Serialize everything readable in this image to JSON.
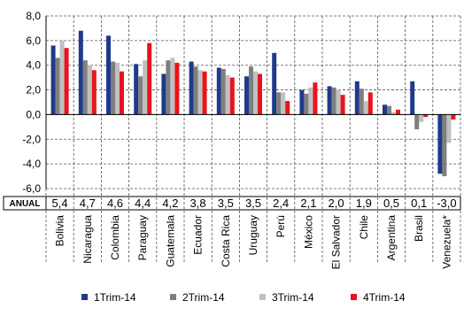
{
  "chart_data": {
    "type": "bar",
    "categories": [
      "Bolivia",
      "Nicaragua",
      "Colombia",
      "Paraguay",
      "Guatemala",
      "Ecuador",
      "Costa Rica",
      "Uruguay",
      "Perú",
      "México",
      "El Salvador",
      "Chile",
      "Argentina",
      "Brasil",
      "Venezuela*"
    ],
    "series": [
      {
        "name": "1Trim-14",
        "color": "#1f3a8a",
        "values": [
          5.6,
          6.8,
          6.4,
          4.1,
          3.3,
          4.3,
          3.8,
          3.1,
          5.0,
          2.0,
          2.3,
          2.7,
          0.8,
          2.7,
          -4.8
        ]
      },
      {
        "name": "2Trim-14",
        "color": "#7f7f7f",
        "values": [
          4.6,
          4.4,
          4.3,
          3.1,
          4.4,
          3.9,
          3.7,
          3.9,
          1.8,
          1.7,
          2.2,
          2.1,
          0.7,
          -1.2,
          -5.0
        ]
      },
      {
        "name": "3Trim-14",
        "color": "#c0c0c0",
        "values": [
          6.0,
          4.0,
          4.2,
          4.4,
          4.6,
          3.6,
          3.2,
          3.5,
          1.8,
          2.2,
          2.0,
          1.1,
          0.2,
          -0.6,
          -2.3
        ]
      },
      {
        "name": "4Trim-14",
        "color": "#e8141d",
        "values": [
          5.4,
          3.6,
          3.5,
          5.8,
          4.2,
          3.5,
          3.0,
          3.3,
          1.1,
          2.6,
          1.6,
          1.8,
          0.4,
          -0.2,
          -0.4
        ]
      }
    ],
    "ylim": [
      -6.0,
      8.0
    ],
    "yticks": [
      "8,0",
      "6,0",
      "4,0",
      "2,0",
      "0,0",
      "-2,0",
      "-4,0",
      "-6,0"
    ],
    "grid": true,
    "legend_position": "bottom",
    "annual": {
      "label": "ANUAL",
      "values": [
        "5,4",
        "4,7",
        "4,6",
        "4,4",
        "4,2",
        "3,8",
        "3,5",
        "3,5",
        "2,4",
        "2,1",
        "2,0",
        "1,9",
        "0,5",
        "0,1",
        "-3,0"
      ]
    }
  }
}
